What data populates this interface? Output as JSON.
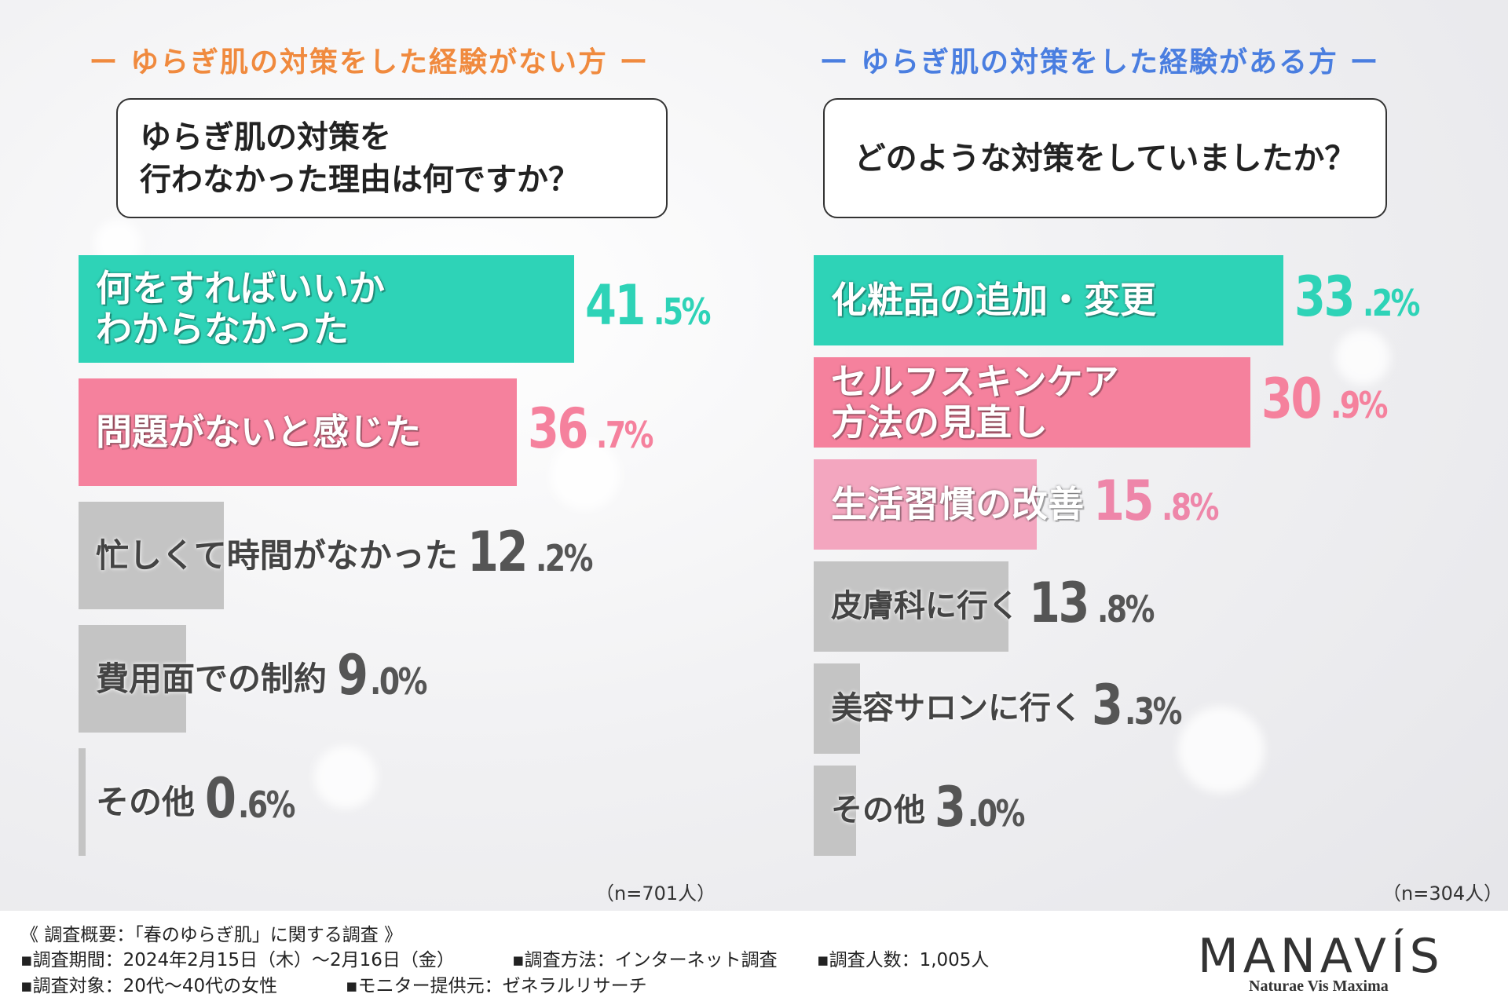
{
  "left": {
    "section_title": "ー ゆらぎ肌の対策をした経験がない方 ー",
    "question_line1": "ゆらぎ肌の対策を",
    "question_line2": "行わなかった理由は何ですか？",
    "n_note": "（n=701人）"
  },
  "right": {
    "section_title": "ー ゆらぎ肌の対策をした経験がある方 ー",
    "question": "どのような対策をしていましたか？",
    "n_note": "（n=304人）"
  },
  "chart_data": [
    {
      "type": "bar",
      "orientation": "horizontal",
      "categories": [
        "何をすればいいか\nわからなかった",
        "問題がないと感じた",
        "忙しくて時間がなかった",
        "費用面での制約",
        "その他"
      ],
      "values": [
        41.5,
        36.7,
        12.2,
        9.0,
        0.6
      ],
      "value_labels": [
        [
          "41",
          ".5%"
        ],
        [
          "36",
          ".7%"
        ],
        [
          "12",
          ".2%"
        ],
        [
          "9",
          ".0%"
        ],
        [
          "0",
          ".6%"
        ]
      ],
      "colors": [
        "#2ed3b7",
        "#f5819d",
        "#c4c4c4",
        "#c4c4c4",
        "#c4c4c4"
      ],
      "xlim": [
        0,
        50
      ]
    },
    {
      "type": "bar",
      "orientation": "horizontal",
      "categories": [
        "化粧品の追加・変更",
        "セルフスキンケア\n方法の見直し",
        "生活習慣の改善",
        "皮膚科に行く",
        "美容サロンに行く",
        "その他"
      ],
      "values": [
        33.2,
        30.9,
        15.8,
        13.8,
        3.3,
        3.0
      ],
      "value_labels": [
        [
          "33",
          ".2%"
        ],
        [
          "30",
          ".9%"
        ],
        [
          "15",
          ".8%"
        ],
        [
          "13",
          ".8%"
        ],
        [
          "3",
          ".3%"
        ],
        [
          "3",
          ".0%"
        ]
      ],
      "colors": [
        "#2ed3b7",
        "#f5819d",
        "#f3a6bf",
        "#c4c4c4",
        "#c4c4c4",
        "#c4c4c4"
      ],
      "xlim": [
        0,
        40
      ]
    }
  ],
  "footer": {
    "overview": "《 調査概要：「春のゆらぎ肌」に関する調査 》",
    "period": "▪調査期間：2024年2月15日（木）～2月16日（金）",
    "method": "▪調査方法：インターネット調査",
    "count": "▪調査人数：1,005人",
    "target": "▪調査対象：20代～40代の女性",
    "provider": "▪モニター提供元：ゼネラルリサーチ"
  },
  "brand": {
    "logo": "MANAVÍS",
    "tagline": "Naturae Vis Maxima"
  }
}
